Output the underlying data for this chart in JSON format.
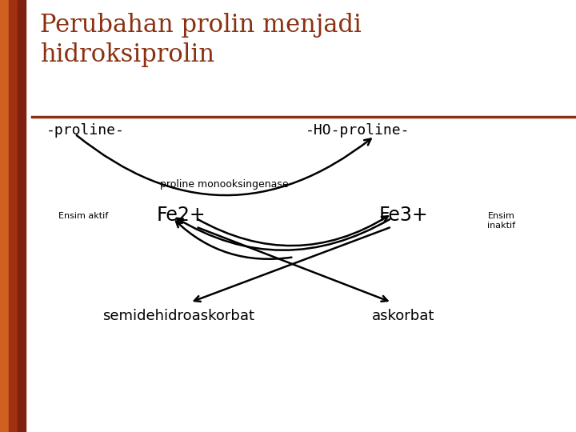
{
  "title_line1": "Perubahan prolin menjadi",
  "title_line2": "hidroksiprolin",
  "title_color": "#8B3010",
  "title_fontsize": 22,
  "bg_color": "#FFFFFF",
  "left_bar_color": "#C05010",
  "separator_color": "#8B3010",
  "label_proline": "-proline-",
  "label_HO_proline": "-HO-proline-",
  "label_enzyme": "proline monooksingenase",
  "label_Fe2": "Fe2+",
  "label_Fe3": "Fe3+",
  "label_ensim_aktif": "Ensim aktif",
  "label_ensim_inaktif": "Ensim\ninaktif",
  "label_semi": "semidehidroaskorbat",
  "label_askorbat": "askorbat",
  "text_color": "#000000",
  "arrow_color": "#000000"
}
